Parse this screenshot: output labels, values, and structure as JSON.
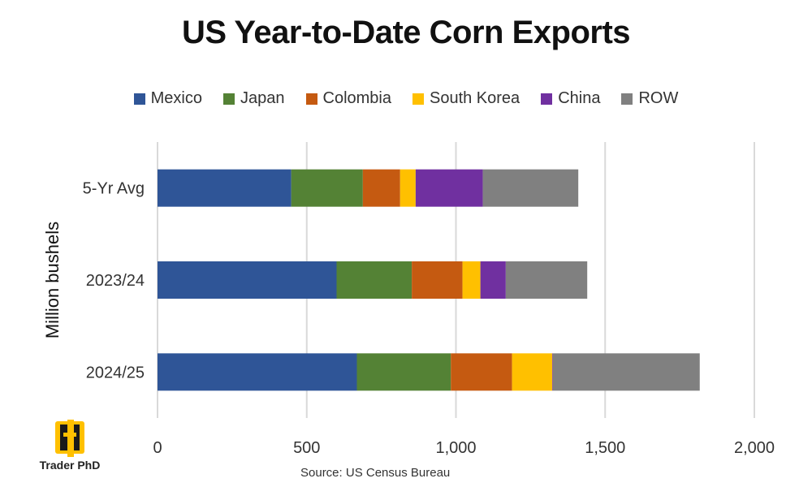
{
  "source": "Source: US Census Bureau",
  "logo": {
    "text": "Trader PhD"
  },
  "chart_data": {
    "type": "bar",
    "orientation": "horizontal",
    "stacked": true,
    "title": "US Year-to-Date Corn Exports",
    "ylabel": "Million bushels",
    "xlabel": "",
    "xlim": [
      0,
      2000
    ],
    "xticks": [
      0,
      500,
      1000,
      1500,
      2000
    ],
    "xtick_labels": [
      "0",
      "500",
      "1,000",
      "1,500",
      "2,000"
    ],
    "grid": "vertical",
    "legend_position": "top",
    "categories": [
      "5-Yr Avg",
      "2023/24",
      "2024/25"
    ],
    "series": [
      {
        "name": "Mexico",
        "color": "#2F5597",
        "values": [
          448,
          600,
          668
        ]
      },
      {
        "name": "Japan",
        "color": "#548235",
        "values": [
          240,
          252,
          315
        ]
      },
      {
        "name": "Colombia",
        "color": "#C55A11",
        "values": [
          125,
          170,
          205
        ]
      },
      {
        "name": "South Korea",
        "color": "#FFC000",
        "values": [
          52,
          60,
          135
        ]
      },
      {
        "name": "China",
        "color": "#7030A0",
        "values": [
          225,
          85,
          2
        ]
      },
      {
        "name": "ROW",
        "color": "#808080",
        "values": [
          320,
          273,
          492
        ]
      }
    ]
  }
}
